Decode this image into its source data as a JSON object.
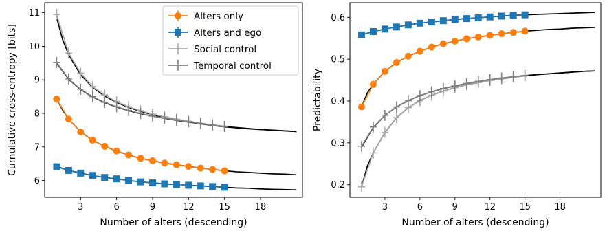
{
  "chart_data": [
    {
      "type": "line",
      "xlabel": "Number of alters (descending)",
      "ylabel": "Cumulative cross-entropy [bits]",
      "xlim": [
        0,
        21.5
      ],
      "ylim": [
        5.5,
        11.3
      ],
      "xticks": [
        3,
        6,
        9,
        12,
        15,
        18
      ],
      "yticks": [
        6,
        7,
        8,
        9,
        10,
        11
      ],
      "legend": "top-right",
      "x": [
        1,
        2,
        3,
        4,
        5,
        6,
        7,
        8,
        9,
        10,
        11,
        12,
        13,
        14,
        15
      ],
      "series": [
        {
          "name": "Alters only",
          "color": "#ff7f0e",
          "marker": "circle",
          "values": [
            8.43,
            7.83,
            7.45,
            7.2,
            7.02,
            6.88,
            6.76,
            6.66,
            6.59,
            6.52,
            6.47,
            6.42,
            6.37,
            6.33,
            6.29
          ],
          "fit": [
            [
              1,
              8.43
            ],
            [
              1.5,
              8.1
            ],
            [
              2,
              7.83
            ],
            [
              3,
              7.45
            ],
            [
              4,
              7.2
            ],
            [
              5,
              7.02
            ],
            [
              6,
              6.88
            ],
            [
              7,
              6.76
            ],
            [
              8,
              6.66
            ],
            [
              9,
              6.59
            ],
            [
              10,
              6.52
            ],
            [
              11,
              6.47
            ],
            [
              12,
              6.42
            ],
            [
              13,
              6.37
            ],
            [
              14,
              6.33
            ],
            [
              15,
              6.29
            ],
            [
              16,
              6.26
            ],
            [
              17,
              6.24
            ],
            [
              18,
              6.22
            ],
            [
              19,
              6.2
            ],
            [
              20,
              6.19
            ],
            [
              21,
              6.17
            ]
          ]
        },
        {
          "name": "Alters and ego",
          "color": "#1f77b4",
          "marker": "square",
          "values": [
            6.41,
            6.3,
            6.22,
            6.15,
            6.09,
            6.05,
            6.0,
            5.96,
            5.93,
            5.9,
            5.88,
            5.86,
            5.84,
            5.82,
            5.8
          ],
          "fit": [
            [
              1,
              6.42
            ],
            [
              2,
              6.3
            ],
            [
              3,
              6.22
            ],
            [
              4,
              6.15
            ],
            [
              5,
              6.09
            ],
            [
              6,
              6.05
            ],
            [
              7,
              6.0
            ],
            [
              8,
              5.96
            ],
            [
              9,
              5.93
            ],
            [
              10,
              5.9
            ],
            [
              11,
              5.88
            ],
            [
              12,
              5.86
            ],
            [
              13,
              5.84
            ],
            [
              14,
              5.82
            ],
            [
              15,
              5.8
            ],
            [
              16,
              5.78
            ],
            [
              17,
              5.77
            ],
            [
              18,
              5.75
            ],
            [
              19,
              5.74
            ],
            [
              20,
              5.73
            ],
            [
              21,
              5.72
            ]
          ]
        },
        {
          "name": "Social control",
          "color": "#a9a9a9",
          "marker": "plus",
          "values": [
            10.95,
            9.8,
            9.2,
            8.8,
            8.55,
            8.35,
            8.2,
            8.08,
            7.98,
            7.9,
            7.83,
            7.77,
            7.71,
            7.66,
            7.62
          ],
          "fit": [
            [
              1,
              10.85
            ],
            [
              1.5,
              10.2
            ],
            [
              2,
              9.75
            ],
            [
              3,
              9.15
            ],
            [
              4,
              8.78
            ],
            [
              5,
              8.52
            ],
            [
              6,
              8.33
            ],
            [
              7,
              8.18
            ],
            [
              8,
              8.06
            ],
            [
              9,
              7.96
            ],
            [
              10,
              7.88
            ],
            [
              11,
              7.81
            ],
            [
              12,
              7.75
            ],
            [
              13,
              7.7
            ],
            [
              14,
              7.65
            ],
            [
              15,
              7.61
            ],
            [
              16,
              7.58
            ],
            [
              17,
              7.55
            ],
            [
              18,
              7.52
            ],
            [
              19,
              7.5
            ],
            [
              20,
              7.48
            ],
            [
              21,
              7.46
            ]
          ]
        },
        {
          "name": "Temporal control",
          "color": "#808080",
          "marker": "plus",
          "values": [
            9.52,
            9.03,
            8.72,
            8.5,
            8.33,
            8.2,
            8.09,
            8.0,
            7.92,
            7.86,
            7.8,
            7.75,
            7.7,
            7.65,
            7.61
          ],
          "fit": [
            [
              1,
              9.5
            ],
            [
              2,
              9.02
            ],
            [
              3,
              8.71
            ],
            [
              4,
              8.49
            ],
            [
              5,
              8.32
            ],
            [
              6,
              8.19
            ],
            [
              7,
              8.08
            ],
            [
              8,
              7.99
            ],
            [
              9,
              7.92
            ],
            [
              10,
              7.85
            ],
            [
              11,
              7.79
            ],
            [
              12,
              7.74
            ],
            [
              13,
              7.69
            ],
            [
              14,
              7.64
            ],
            [
              15,
              7.6
            ],
            [
              16,
              7.57
            ],
            [
              17,
              7.54
            ],
            [
              18,
              7.52
            ],
            [
              19,
              7.5
            ],
            [
              20,
              7.48
            ],
            [
              21,
              7.46
            ]
          ]
        }
      ]
    },
    {
      "type": "line",
      "xlabel": "Number of alters (descending)",
      "ylabel": "Predictability",
      "xlim": [
        0,
        21.5
      ],
      "ylim": [
        0.17,
        0.635
      ],
      "xticks": [
        3,
        6,
        9,
        12,
        15,
        18
      ],
      "yticks": [
        0.2,
        0.3,
        0.4,
        0.5,
        0.6
      ],
      "x": [
        1,
        2,
        3,
        4,
        5,
        6,
        7,
        8,
        9,
        10,
        11,
        12,
        13,
        14,
        15
      ],
      "series": [
        {
          "name": "Alters only",
          "color": "#ff7f0e",
          "marker": "circle",
          "values": [
            0.386,
            0.44,
            0.471,
            0.492,
            0.507,
            0.519,
            0.529,
            0.537,
            0.543,
            0.549,
            0.553,
            0.557,
            0.561,
            0.564,
            0.567
          ],
          "fit": [
            [
              1,
              0.386
            ],
            [
              1.5,
              0.42
            ],
            [
              2,
              0.44
            ],
            [
              3,
              0.471
            ],
            [
              4,
              0.492
            ],
            [
              5,
              0.507
            ],
            [
              6,
              0.519
            ],
            [
              7,
              0.529
            ],
            [
              8,
              0.537
            ],
            [
              9,
              0.543
            ],
            [
              10,
              0.549
            ],
            [
              11,
              0.553
            ],
            [
              12,
              0.557
            ],
            [
              13,
              0.561
            ],
            [
              14,
              0.564
            ],
            [
              15,
              0.567
            ],
            [
              16,
              0.569
            ],
            [
              17,
              0.571
            ],
            [
              18,
              0.572
            ],
            [
              19,
              0.574
            ],
            [
              20,
              0.575
            ],
            [
              21,
              0.576
            ]
          ]
        },
        {
          "name": "Alters and ego",
          "color": "#1f77b4",
          "marker": "square",
          "values": [
            0.558,
            0.566,
            0.572,
            0.577,
            0.582,
            0.586,
            0.589,
            0.592,
            0.595,
            0.597,
            0.599,
            0.601,
            0.603,
            0.605,
            0.606
          ],
          "fit": [
            [
              1,
              0.558
            ],
            [
              2,
              0.566
            ],
            [
              3,
              0.572
            ],
            [
              4,
              0.577
            ],
            [
              5,
              0.582
            ],
            [
              6,
              0.586
            ],
            [
              7,
              0.589
            ],
            [
              8,
              0.592
            ],
            [
              9,
              0.595
            ],
            [
              10,
              0.597
            ],
            [
              11,
              0.599
            ],
            [
              12,
              0.601
            ],
            [
              13,
              0.603
            ],
            [
              14,
              0.605
            ],
            [
              15,
              0.606
            ],
            [
              16,
              0.607
            ],
            [
              17,
              0.608
            ],
            [
              18,
              0.609
            ],
            [
              19,
              0.61
            ],
            [
              20,
              0.611
            ],
            [
              21,
              0.612
            ]
          ]
        },
        {
          "name": "Social control",
          "color": "#a9a9a9",
          "marker": "plus",
          "values": [
            0.195,
            0.276,
            0.325,
            0.36,
            0.384,
            0.401,
            0.414,
            0.424,
            0.432,
            0.439,
            0.444,
            0.449,
            0.453,
            0.457,
            0.46
          ],
          "fit": [
            [
              1,
              0.195
            ],
            [
              1.5,
              0.245
            ],
            [
              2,
              0.276
            ],
            [
              3,
              0.325
            ],
            [
              4,
              0.36
            ],
            [
              5,
              0.384
            ],
            [
              6,
              0.401
            ],
            [
              7,
              0.414
            ],
            [
              8,
              0.424
            ],
            [
              9,
              0.432
            ],
            [
              10,
              0.439
            ],
            [
              11,
              0.444
            ],
            [
              12,
              0.449
            ],
            [
              13,
              0.453
            ],
            [
              14,
              0.457
            ],
            [
              15,
              0.46
            ],
            [
              16,
              0.463
            ],
            [
              17,
              0.465
            ],
            [
              18,
              0.467
            ],
            [
              19,
              0.469
            ],
            [
              20,
              0.471
            ],
            [
              21,
              0.472
            ]
          ]
        },
        {
          "name": "Temporal control",
          "color": "#808080",
          "marker": "plus",
          "values": [
            0.292,
            0.338,
            0.366,
            0.386,
            0.401,
            0.413,
            0.422,
            0.43,
            0.436,
            0.442,
            0.447,
            0.451,
            0.455,
            0.458,
            0.461
          ],
          "fit": [
            [
              1,
              0.29
            ],
            [
              2,
              0.337
            ],
            [
              3,
              0.366
            ],
            [
              4,
              0.386
            ],
            [
              5,
              0.401
            ],
            [
              6,
              0.413
            ],
            [
              7,
              0.422
            ],
            [
              8,
              0.43
            ],
            [
              9,
              0.436
            ],
            [
              10,
              0.442
            ],
            [
              11,
              0.447
            ],
            [
              12,
              0.451
            ],
            [
              13,
              0.455
            ],
            [
              14,
              0.458
            ],
            [
              15,
              0.461
            ],
            [
              16,
              0.463
            ],
            [
              17,
              0.465
            ],
            [
              18,
              0.467
            ],
            [
              19,
              0.469
            ],
            [
              20,
              0.471
            ],
            [
              21,
              0.472
            ]
          ]
        }
      ]
    }
  ]
}
